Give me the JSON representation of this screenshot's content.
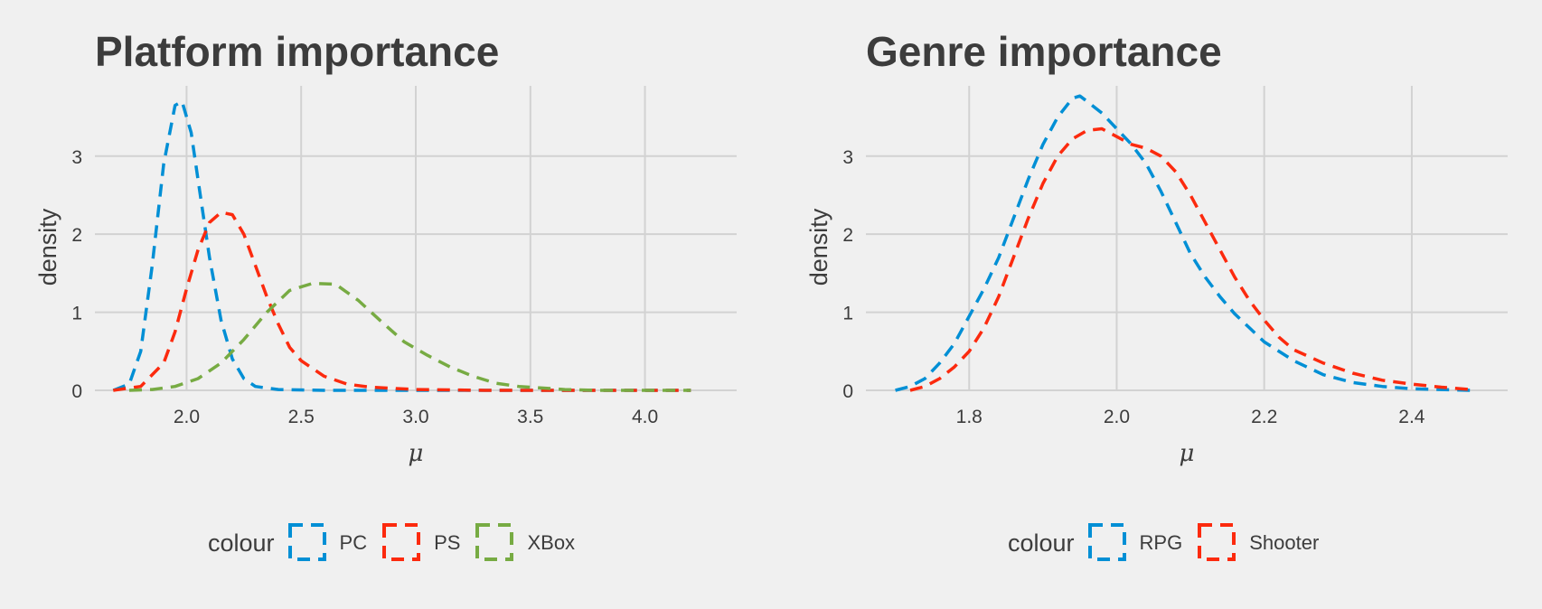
{
  "colors": {
    "background": "#f0f0f0",
    "grid": "#d2d2d2",
    "text": "#3c3c3c",
    "PC": "#008fd5",
    "PS": "#fc2a0e",
    "XBox": "#77ab43",
    "RPG": "#008fd5",
    "Shooter": "#fc2a0e"
  },
  "chart_data": [
    {
      "type": "line",
      "title": "Platform importance",
      "xlabel": "μ",
      "ylabel": "density",
      "xlim": [
        1.6,
        4.4
      ],
      "ylim": [
        0,
        3.9
      ],
      "xticks": [
        2.0,
        2.5,
        3.0,
        3.5,
        4.0
      ],
      "xtick_labels": [
        "2.0",
        "2.5",
        "3.0",
        "3.5",
        "4.0"
      ],
      "yticks": [
        0,
        1,
        2,
        3
      ],
      "ytick_labels": [
        "0",
        "1",
        "2",
        "3"
      ],
      "grid": true,
      "line_style": "dashed",
      "legend": {
        "title": "colour",
        "position": "bottom"
      },
      "series": [
        {
          "name": "PC",
          "color": "#008fd5",
          "x": [
            1.68,
            1.75,
            1.8,
            1.85,
            1.9,
            1.95,
            1.98,
            2.02,
            2.06,
            2.1,
            2.15,
            2.2,
            2.25,
            2.3,
            2.4,
            2.6,
            3.0,
            3.5,
            4.0,
            4.2
          ],
          "y": [
            0.0,
            0.08,
            0.5,
            1.6,
            2.9,
            3.65,
            3.7,
            3.3,
            2.5,
            1.7,
            0.9,
            0.4,
            0.15,
            0.05,
            0.01,
            0.0,
            0.0,
            0.0,
            0.0,
            0.0
          ]
        },
        {
          "name": "PS",
          "color": "#fc2a0e",
          "x": [
            1.68,
            1.8,
            1.9,
            1.95,
            2.0,
            2.05,
            2.1,
            2.15,
            2.2,
            2.25,
            2.3,
            2.35,
            2.4,
            2.45,
            2.5,
            2.6,
            2.7,
            2.8,
            3.0,
            3.3,
            3.6,
            4.0,
            4.2
          ],
          "y": [
            0.0,
            0.05,
            0.35,
            0.75,
            1.3,
            1.8,
            2.15,
            2.28,
            2.25,
            2.0,
            1.6,
            1.2,
            0.85,
            0.55,
            0.38,
            0.18,
            0.08,
            0.04,
            0.01,
            0.0,
            0.0,
            0.0,
            0.0
          ]
        },
        {
          "name": "XBox",
          "color": "#77ab43",
          "x": [
            1.75,
            1.85,
            1.95,
            2.05,
            2.15,
            2.25,
            2.35,
            2.45,
            2.55,
            2.65,
            2.75,
            2.85,
            2.95,
            3.05,
            3.15,
            3.25,
            3.35,
            3.45,
            3.55,
            3.65,
            3.8,
            4.0,
            4.2
          ],
          "y": [
            0.0,
            0.01,
            0.05,
            0.15,
            0.35,
            0.65,
            1.0,
            1.28,
            1.37,
            1.36,
            1.15,
            0.88,
            0.62,
            0.45,
            0.3,
            0.18,
            0.09,
            0.05,
            0.03,
            0.01,
            0.0,
            0.0,
            0.0
          ]
        }
      ]
    },
    {
      "type": "line",
      "title": "Genre importance",
      "xlabel": "μ",
      "ylabel": "density",
      "xlim": [
        1.66,
        2.53
      ],
      "ylim": [
        0,
        3.9
      ],
      "xticks": [
        1.8,
        2.0,
        2.2,
        2.4
      ],
      "xtick_labels": [
        "1.8",
        "2.0",
        "2.2",
        "2.4"
      ],
      "yticks": [
        0,
        1,
        2,
        3
      ],
      "ytick_labels": [
        "0",
        "1",
        "2",
        "3"
      ],
      "grid": true,
      "line_style": "dashed",
      "legend": {
        "title": "colour",
        "position": "bottom"
      },
      "series": [
        {
          "name": "RPG",
          "color": "#008fd5",
          "x": [
            1.7,
            1.72,
            1.74,
            1.76,
            1.78,
            1.8,
            1.82,
            1.84,
            1.86,
            1.88,
            1.9,
            1.92,
            1.94,
            1.95,
            1.96,
            1.98,
            2.0,
            2.02,
            2.04,
            2.06,
            2.08,
            2.1,
            2.12,
            2.14,
            2.16,
            2.18,
            2.2,
            2.24,
            2.28,
            2.32,
            2.36,
            2.4,
            2.44,
            2.48
          ],
          "y": [
            0.0,
            0.05,
            0.15,
            0.35,
            0.6,
            0.95,
            1.3,
            1.7,
            2.2,
            2.7,
            3.15,
            3.5,
            3.74,
            3.77,
            3.7,
            3.55,
            3.35,
            3.15,
            2.9,
            2.55,
            2.15,
            1.75,
            1.45,
            1.2,
            0.98,
            0.8,
            0.62,
            0.38,
            0.2,
            0.1,
            0.05,
            0.02,
            0.01,
            0.0
          ]
        },
        {
          "name": "Shooter",
          "color": "#fc2a0e",
          "x": [
            1.72,
            1.74,
            1.76,
            1.78,
            1.8,
            1.82,
            1.84,
            1.86,
            1.88,
            1.9,
            1.92,
            1.94,
            1.96,
            1.98,
            2.0,
            2.02,
            2.04,
            2.06,
            2.08,
            2.1,
            2.12,
            2.14,
            2.16,
            2.18,
            2.2,
            2.22,
            2.24,
            2.28,
            2.32,
            2.36,
            2.4,
            2.44,
            2.48
          ],
          "y": [
            0.0,
            0.05,
            0.15,
            0.3,
            0.5,
            0.8,
            1.2,
            1.7,
            2.2,
            2.65,
            3.0,
            3.22,
            3.33,
            3.35,
            3.25,
            3.15,
            3.1,
            3.0,
            2.8,
            2.5,
            2.15,
            1.8,
            1.45,
            1.15,
            0.9,
            0.68,
            0.52,
            0.35,
            0.22,
            0.13,
            0.08,
            0.04,
            0.01
          ]
        }
      ]
    }
  ]
}
